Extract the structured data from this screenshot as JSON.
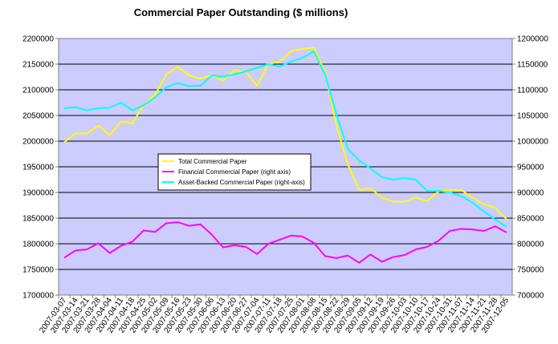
{
  "chart_data": {
    "type": "line",
    "title": "Commercial Paper Outstanding ($ millions)",
    "categories": [
      "2007-03-07",
      "2007-03-14",
      "2007-03-21",
      "2007-03-28",
      "2007-04-04",
      "2007-04-11",
      "2007-04-18",
      "2007-04-25",
      "2007-05-02",
      "2007-05-09",
      "2007-05-16",
      "2007-05-23",
      "2007-05-30",
      "2007-06-06",
      "2007-06-13",
      "2007-06-20",
      "2007-06-27",
      "2007-07-04",
      "2007-07-11",
      "2007-07-18",
      "2007-07-25",
      "2007-08-01",
      "2007-08-08",
      "2007-08-15",
      "2007-08-22",
      "2007-08-29",
      "2007-09-05",
      "2007-09-12",
      "2007-09-19",
      "2007-09-26",
      "2007-10-03",
      "2007-10-10",
      "2007-10-17",
      "2007-10-24",
      "2007-10-31",
      "2007-11-07",
      "2007-11-14",
      "2007-11-21",
      "2007-11-28",
      "2007-12-05"
    ],
    "left_axis": {
      "min": 1700000,
      "max": 2200000,
      "step": 50000
    },
    "right_axis": {
      "min": 700000,
      "max": 1200000,
      "step": 50000
    },
    "grid": true,
    "plot_background": "#CCCCFF",
    "legend_position": "center-left",
    "series": [
      {
        "name": "Total Commercial Paper",
        "axis": "left",
        "color": "#FFFF00",
        "values": [
          1998000,
          2015000,
          2015000,
          2030000,
          2012000,
          2038000,
          2035000,
          2070000,
          2090000,
          2130000,
          2145000,
          2128000,
          2122000,
          2128000,
          2118000,
          2138000,
          2135000,
          2108000,
          2150000,
          2155000,
          2175000,
          2180000,
          2182000,
          2135000,
          2030000,
          1955000,
          1905000,
          1908000,
          1890000,
          1882000,
          1882000,
          1890000,
          1883000,
          1902000,
          1905000,
          1905000,
          1890000,
          1877000,
          1870000,
          1848000
        ]
      },
      {
        "name": "Financial Commercial Paper (right axis)",
        "axis": "right",
        "color": "#FF00FF",
        "values": [
          773000,
          787000,
          789000,
          801000,
          782000,
          796000,
          804000,
          826000,
          823000,
          840000,
          842000,
          835000,
          838000,
          818000,
          793000,
          797000,
          794000,
          780000,
          800000,
          808000,
          816000,
          814000,
          802000,
          776000,
          772000,
          777000,
          763000,
          779000,
          765000,
          774000,
          778000,
          789000,
          794000,
          806000,
          825000,
          829000,
          828000,
          825000,
          834000,
          822000
        ]
      },
      {
        "name": "Asset-Backed Commercial Paper (right-axis)",
        "axis": "right",
        "color": "#00FFFF",
        "values": [
          1064000,
          1066000,
          1060000,
          1064000,
          1065000,
          1075000,
          1060000,
          1070000,
          1085000,
          1105000,
          1113000,
          1107000,
          1108000,
          1128000,
          1126000,
          1130000,
          1136000,
          1143000,
          1150000,
          1145000,
          1155000,
          1162000,
          1175000,
          1130000,
          1052000,
          985000,
          962000,
          947000,
          930000,
          925000,
          928000,
          925000,
          903000,
          903000,
          900000,
          893000,
          880000,
          863000,
          847000,
          833000
        ]
      }
    ]
  }
}
